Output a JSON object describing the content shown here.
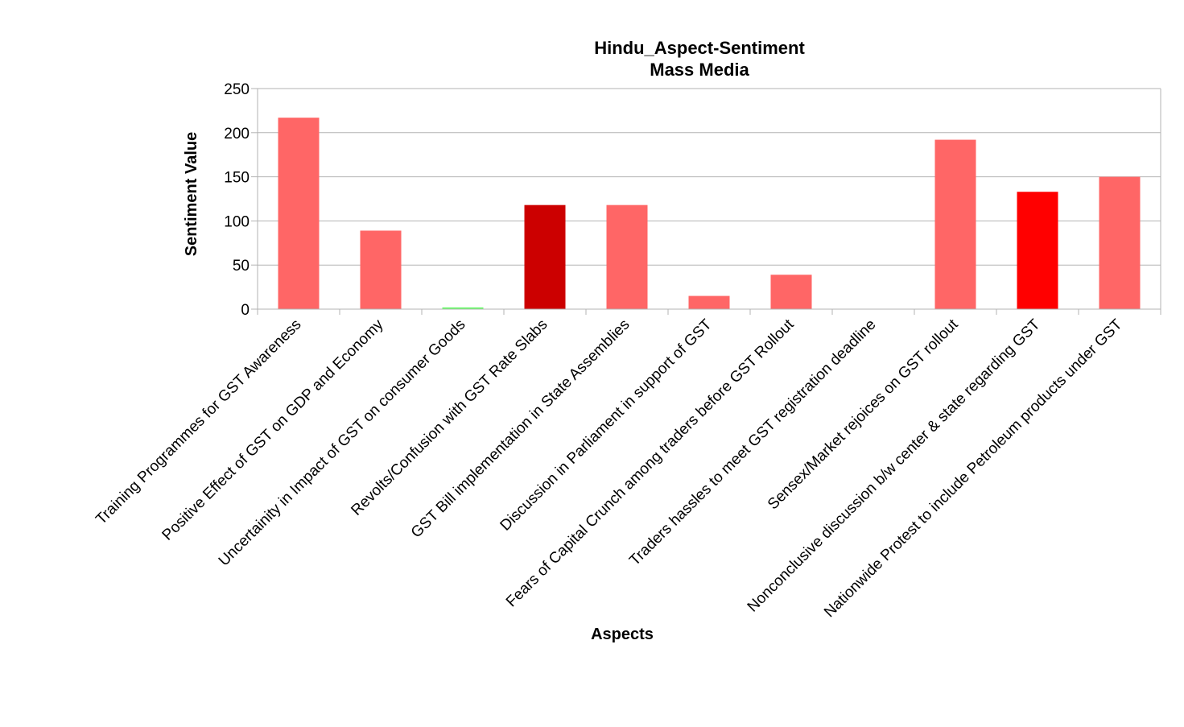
{
  "chart_data": {
    "type": "bar",
    "title": "Hindu_Aspect-Sentiment",
    "subtitle": "Mass Media",
    "xlabel": "Aspects",
    "ylabel": "Sentiment Value",
    "ylim": [
      0,
      250
    ],
    "yticks": [
      0,
      50,
      100,
      150,
      200,
      250
    ],
    "grid": true,
    "categories": [
      "Training Programmes for  GST Awareness",
      "Positive Effect of GST on GDP and Economy",
      "Uncertainity in Impact of GST on consumer Goods",
      "Revolts/Confusion with GST Rate Slabs",
      "GST Bill implementation in State Assemblies",
      "Discussion in Parliament in support of GST",
      "Fears of Capital Crunch among traders before GST Rollout",
      "Traders hassles to meet GST registration deadline",
      "Sensex/Market rejoices on GST rollout",
      "Nonconclusive discussion b/w center & state regarding GST",
      "Nationwide Protest to include Petroleum products under GST"
    ],
    "values": [
      217,
      89,
      2,
      118,
      118,
      15,
      39,
      0,
      192,
      133,
      150
    ],
    "colors": [
      "#ff6666",
      "#ff6666",
      "#66ff66",
      "#cc0000",
      "#ff6666",
      "#ff6666",
      "#ff6666",
      "#ff6666",
      "#ff6666",
      "#ff0000",
      "#ff6666"
    ]
  }
}
